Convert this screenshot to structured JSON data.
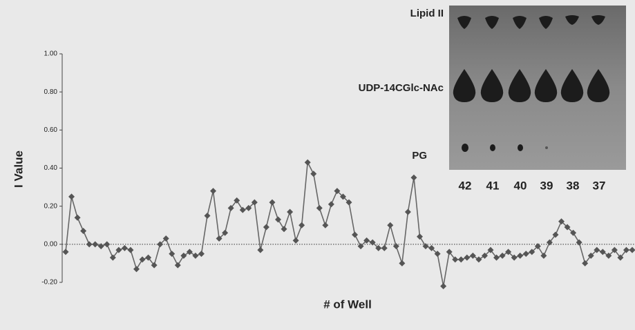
{
  "chart_data": {
    "type": "line",
    "x_label": "# of Well",
    "y_label": "I Value",
    "categories": [
      null,
      null,
      null,
      null,
      null,
      null,
      null,
      null,
      null,
      null,
      null,
      null,
      null,
      null,
      null,
      null,
      null,
      null,
      null,
      null,
      null,
      null,
      null,
      null,
      null,
      null,
      null,
      null,
      null,
      null,
      null,
      null,
      null,
      null,
      null,
      null,
      null,
      null,
      null,
      null,
      null,
      null,
      null,
      null,
      null,
      null,
      null,
      null,
      null,
      null,
      null,
      null,
      null,
      null,
      null,
      null,
      null,
      null,
      null,
      null,
      null,
      null,
      null,
      null,
      null,
      null,
      null,
      null,
      null,
      null,
      null,
      null,
      null,
      null,
      null,
      null,
      null,
      null,
      null,
      null,
      null,
      null,
      null,
      null,
      null,
      null,
      null,
      null,
      null,
      null,
      null,
      null,
      null,
      null,
      null,
      null,
      null
    ],
    "values": [
      -0.04,
      0.25,
      0.14,
      0.07,
      0.0,
      0.0,
      -0.01,
      0.0,
      -0.07,
      -0.03,
      -0.02,
      -0.03,
      -0.13,
      -0.08,
      -0.07,
      -0.11,
      0.0,
      0.03,
      -0.05,
      -0.11,
      -0.06,
      -0.04,
      -0.06,
      -0.05,
      0.15,
      0.28,
      0.03,
      0.06,
      0.19,
      0.23,
      0.18,
      0.19,
      0.22,
      -0.03,
      0.09,
      0.22,
      0.13,
      0.08,
      0.17,
      0.02,
      0.1,
      0.43,
      0.37,
      0.19,
      0.1,
      0.21,
      0.28,
      0.25,
      0.22,
      0.05,
      -0.01,
      0.02,
      0.01,
      -0.02,
      -0.02,
      0.1,
      -0.01,
      -0.1,
      0.17,
      0.35,
      0.04,
      -0.01,
      -0.02,
      -0.05,
      -0.22,
      -0.04,
      -0.08,
      -0.08,
      -0.07,
      -0.06,
      -0.08,
      -0.06,
      -0.03,
      -0.07,
      -0.06,
      -0.04,
      -0.07,
      -0.06,
      -0.05,
      -0.04,
      -0.01,
      -0.06,
      0.01,
      0.05,
      0.12,
      0.09,
      0.06,
      0.01,
      -0.1,
      -0.06,
      -0.03,
      -0.04,
      -0.06,
      -0.03,
      -0.07,
      -0.03,
      -0.03
    ],
    "color": "#555555",
    "ylim": [
      -0.2,
      1.0
    ],
    "yticks": [
      {
        "value": -0.2,
        "label": "-0.20"
      },
      {
        "value": 0,
        "label": "0.00"
      },
      {
        "value": 0.2,
        "label": "0.20"
      },
      {
        "value": 0.4,
        "label": "0.40"
      },
      {
        "value": 0.6,
        "label": "0.60"
      },
      {
        "value": 0.8,
        "label": "0.80"
      },
      {
        "value": 1.0,
        "label": "1.00"
      }
    ],
    "baseline": 0
  },
  "inset": {
    "band_labels": [
      "Lipid II",
      "UDP-14CGlc-NAc",
      "PG"
    ],
    "lanes": [
      "42",
      "41",
      "40",
      "39",
      "38",
      "37"
    ]
  }
}
